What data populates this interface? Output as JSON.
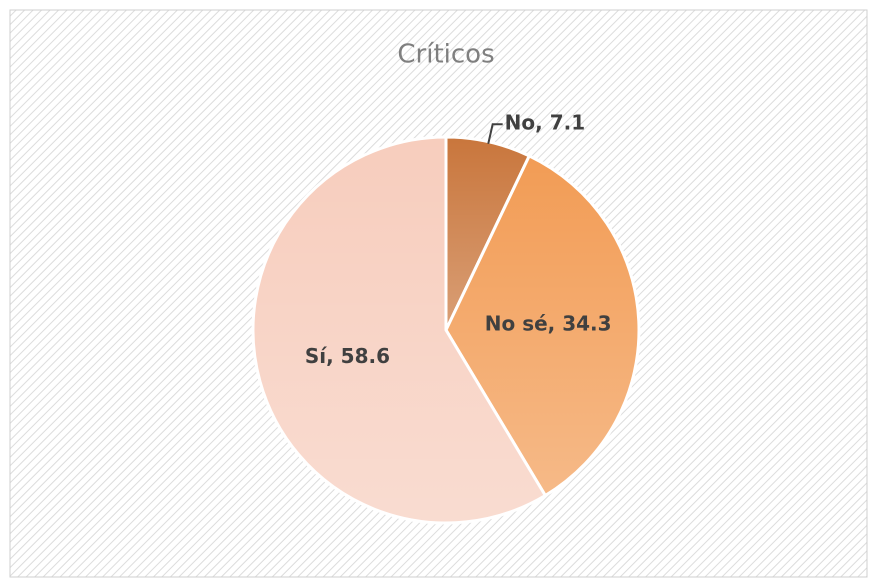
{
  "chart_data": {
    "type": "pie",
    "title": "Críticos",
    "categories": [
      "No",
      "No sé",
      "Sí"
    ],
    "values": [
      7.1,
      34.3,
      58.6
    ],
    "value_labels": [
      "No, 7.1",
      "No sé, 34.3",
      "Sí, 58.6"
    ],
    "colors": [
      "#c9763c",
      "#f29c55",
      "#f7cdbd"
    ]
  }
}
